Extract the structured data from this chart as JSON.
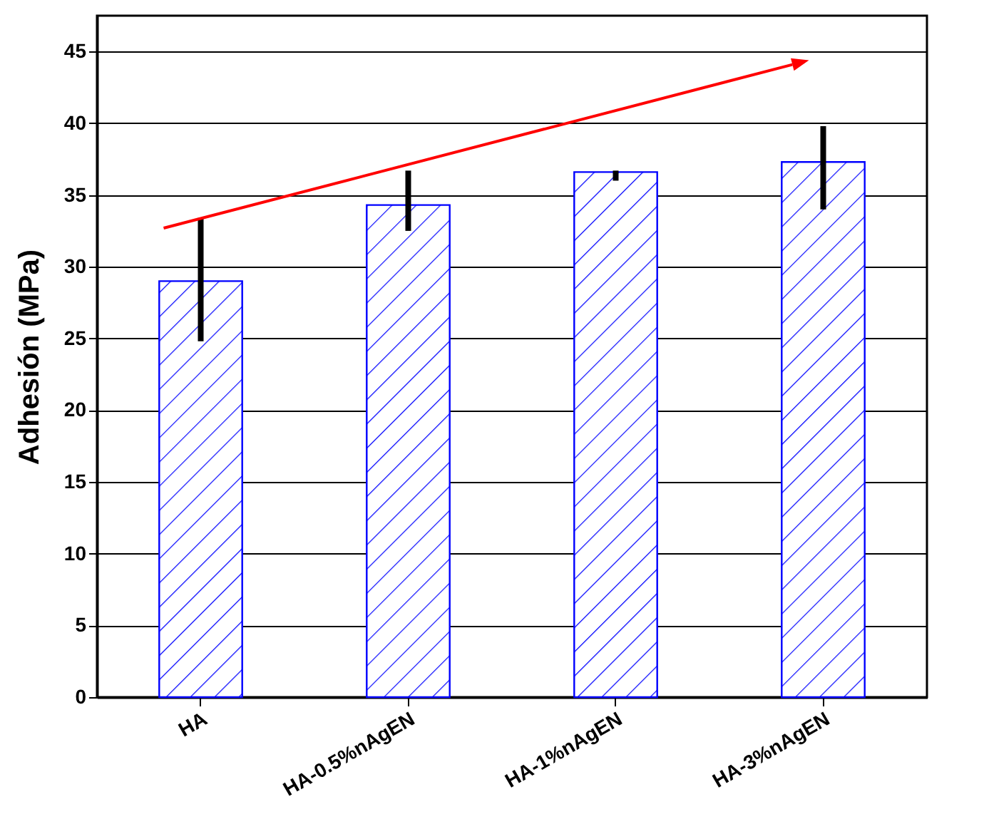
{
  "chart_data": {
    "type": "bar",
    "ylabel": "Adhesión (MPa)",
    "categories": [
      "HA",
      "HA-0.5%nAgEN",
      "HA-1%nAgEN",
      "HA-3%nAgEN"
    ],
    "values": [
      29.0,
      34.3,
      36.6,
      37.3
    ],
    "errors": [
      [
        24.8,
        33.4
      ],
      [
        32.5,
        36.7
      ],
      [
        36.0,
        36.7
      ],
      [
        34.0,
        39.8
      ]
    ],
    "color": "#0000ff",
    "ylim": [
      0,
      47.5
    ],
    "yticks": [
      0,
      5,
      10,
      15,
      20,
      25,
      30,
      35,
      40,
      45
    ],
    "grid": "y"
  }
}
